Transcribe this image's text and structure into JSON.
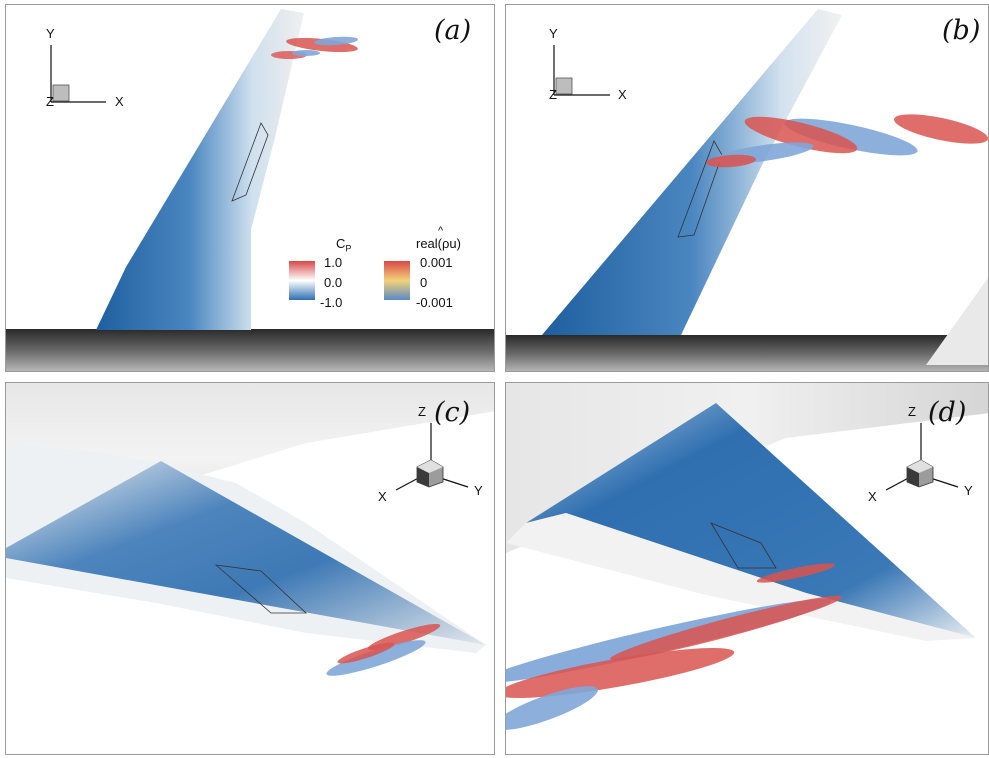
{
  "panels": [
    {
      "label": "(a)",
      "axes": {
        "vertical": "Y",
        "horizontal": "X",
        "depth": "Z"
      }
    },
    {
      "label": "(b)",
      "axes": {
        "vertical": "Y",
        "horizontal": "X",
        "depth": "Z"
      }
    },
    {
      "label": "(c)",
      "axes": {
        "vertical": "Z",
        "right": "Y",
        "left": "X"
      }
    },
    {
      "label": "(d)",
      "axes": {
        "vertical": "Z",
        "right": "Y",
        "left": "X"
      }
    }
  ],
  "legend": {
    "cp": {
      "title_main": "C",
      "title_sub": "P",
      "ticks": [
        "1.0",
        "0.0",
        "-1.0"
      ],
      "colors": [
        "#d84848",
        "#ffffff",
        "#2d6fb3"
      ]
    },
    "mode": {
      "title": "real(ρu)",
      "hat": "^",
      "ticks": [
        "0.001",
        "0",
        "-0.001"
      ],
      "colors": [
        "#d84848",
        "#f3d27a",
        "#5b8ac4"
      ]
    }
  },
  "colors": {
    "wing_blue": "#2f6fb0",
    "surface_white": "#f2f2f2",
    "fuselage_dark": "#3a3a3a",
    "iso_red": "#d9534f",
    "iso_blue": "#7fa6d8"
  }
}
